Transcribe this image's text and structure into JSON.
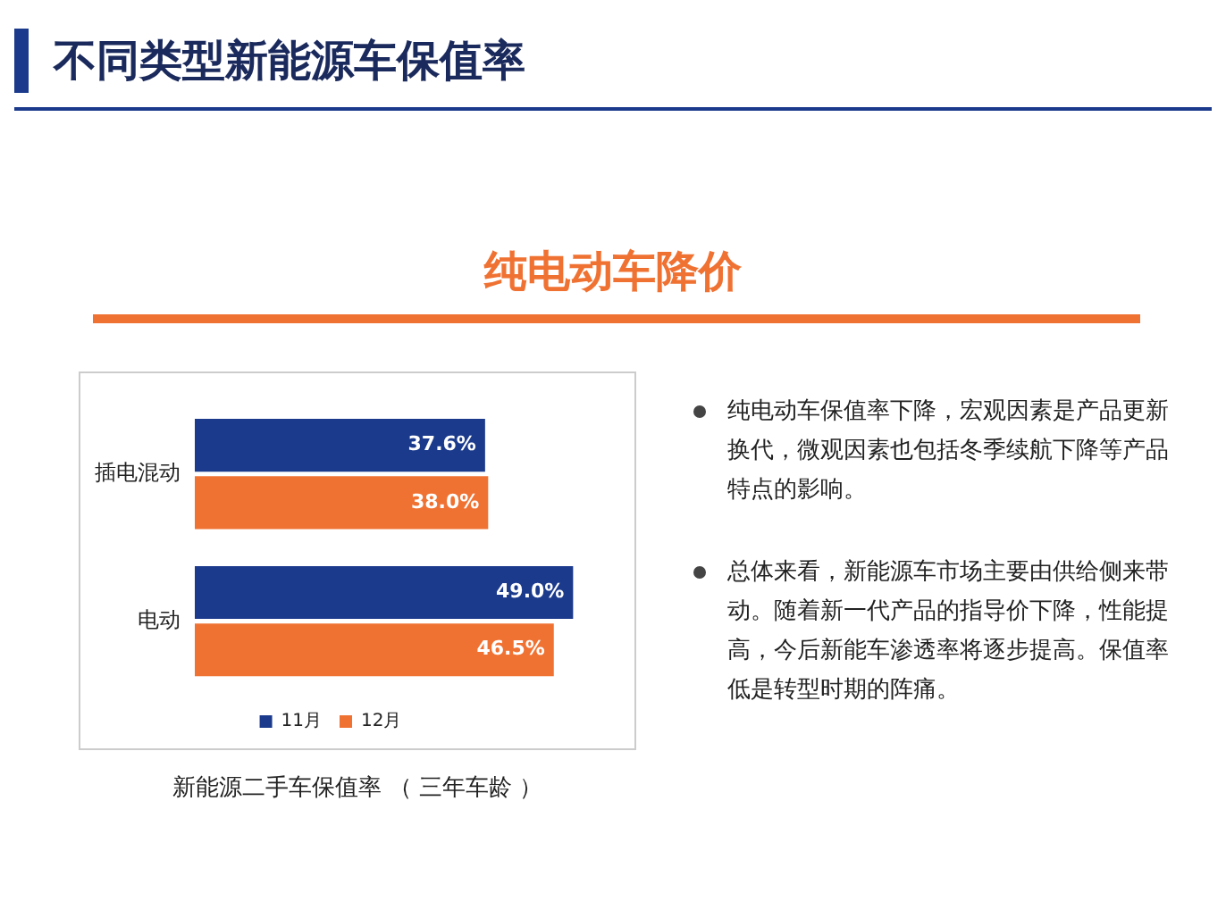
{
  "chart_data": {
    "type": "bar",
    "title": "不同类型新能源车保值率",
    "subtitle": "纯电动车降价",
    "orientation": "horizontal",
    "categories": [
      "插电混动",
      "电动"
    ],
    "series": [
      {
        "name": "11月",
        "color": "#1b3a8c",
        "values": [
          37.6,
          49.0
        ],
        "value_labels": [
          "37.6%",
          "49.0%"
        ]
      },
      {
        "name": "12月",
        "color": "#f07233",
        "values": [
          38.0,
          46.5
        ],
        "value_labels": [
          "38.0%",
          "46.5%"
        ]
      }
    ],
    "legend": "bottom",
    "grid": false,
    "tick_labels": "y",
    "annotations": [
      "新能源二手车保值率 （ 三年车龄 ）",
      "纯电动车保值率下降，宏观因素是产品更新换代，微观因素也包括冬季续航下降等产品特点的影响。",
      "总体来看，新能源车市场主要由供给侧来带动。随着新一代产品的指导价下降，性能提高，今后新能车渗透率将逐步提高。保值率低是转型时期的阵痛。"
    ]
  }
}
